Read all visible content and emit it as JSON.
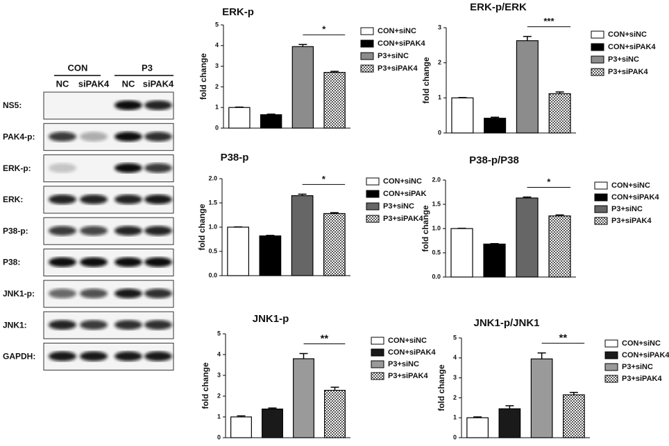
{
  "blot": {
    "groups": [
      "CON",
      "P3"
    ],
    "lanes": [
      "NC",
      "siPAK4",
      "NC",
      "siPAK4"
    ],
    "rows": [
      "NS5:",
      "PAK4-p:",
      "ERK-p:",
      "ERK:",
      "P38-p:",
      "P38:",
      "JNK1-p:",
      "JNK1:",
      "GAPDH:"
    ]
  },
  "chart_data": [
    {
      "type": "bar",
      "title": "ERK-p",
      "ylabel": "fold change",
      "ylim": [
        0,
        5
      ],
      "yticks": [
        0,
        1,
        2,
        3,
        4,
        5
      ],
      "significance": "*",
      "series": [
        {
          "name": "CON+siNC",
          "color": "#ffffff",
          "values": [
            1.0
          ],
          "errors": [
            0.02
          ]
        },
        {
          "name": "CON+siPAK4",
          "color": "#000000",
          "values": [
            0.65
          ],
          "errors": [
            0.03
          ]
        },
        {
          "name": "P3+siNC",
          "color": "#8c8c8c",
          "values": [
            3.95
          ],
          "errors": [
            0.1
          ]
        },
        {
          "name": "P3+siPAK4",
          "color": "#ffffff",
          "pattern": "checker",
          "values": [
            2.7
          ],
          "errors": [
            0.05
          ]
        }
      ]
    },
    {
      "type": "bar",
      "title": "ERK-p/ERK",
      "ylabel": "fold change",
      "ylim": [
        0,
        3
      ],
      "yticks": [
        0,
        1,
        2,
        3
      ],
      "significance": "***",
      "series": [
        {
          "name": "CON+siNC",
          "color": "#ffffff",
          "values": [
            1.0
          ],
          "errors": [
            0.01
          ]
        },
        {
          "name": "CON+siPAK4",
          "color": "#000000",
          "values": [
            0.42
          ],
          "errors": [
            0.03
          ]
        },
        {
          "name": "P3+siNC",
          "color": "#8c8c8c",
          "values": [
            2.63
          ],
          "errors": [
            0.12
          ]
        },
        {
          "name": "P3+siPAK4",
          "color": "#ffffff",
          "pattern": "checker",
          "values": [
            1.12
          ],
          "errors": [
            0.05
          ]
        }
      ]
    },
    {
      "type": "bar",
      "title": "P38-p",
      "ylabel": "fold change",
      "ylim": [
        0,
        2
      ],
      "yticks": [
        {
          "value": 0,
          "label": "0.0"
        },
        {
          "value": 0.5,
          "label": "0.5"
        },
        {
          "value": 1,
          "label": "1.0"
        },
        {
          "value": 1.5,
          "label": "1.5"
        },
        {
          "value": 2,
          "label": "2.0"
        }
      ],
      "significance": "*",
      "series": [
        {
          "name": "CON+siNC",
          "color": "#ffffff",
          "values": [
            1.0
          ],
          "errors": [
            0.005
          ]
        },
        {
          "name": "CON+siPAK",
          "color": "#000000",
          "values": [
            0.82
          ],
          "errors": [
            0.01
          ]
        },
        {
          "name": "P3+siNC",
          "color": "#666666",
          "values": [
            1.65
          ],
          "errors": [
            0.03
          ]
        },
        {
          "name": "P3+siPAK4",
          "color": "#ffffff",
          "pattern": "checker",
          "values": [
            1.28
          ],
          "errors": [
            0.02
          ]
        }
      ]
    },
    {
      "type": "bar",
      "title": "P38-p/P38",
      "ylabel": "fold change",
      "ylim": [
        0,
        2
      ],
      "yticks": [
        {
          "value": 0,
          "label": "0.0"
        },
        {
          "value": 0.5,
          "label": "0.5"
        },
        {
          "value": 1,
          "label": "1.0"
        },
        {
          "value": 1.5,
          "label": "1.5"
        },
        {
          "value": 2,
          "label": "2.0"
        }
      ],
      "significance": "*",
      "series": [
        {
          "name": "CON+siNC",
          "color": "#ffffff",
          "values": [
            1.0
          ],
          "errors": [
            0.005
          ]
        },
        {
          "name": "CON+siPAK4",
          "color": "#000000",
          "values": [
            0.68
          ],
          "errors": [
            0.01
          ]
        },
        {
          "name": "P3+siNC",
          "color": "#666666",
          "values": [
            1.63
          ],
          "errors": [
            0.02
          ]
        },
        {
          "name": "P3+siPAK4",
          "color": "#ffffff",
          "pattern": "checker",
          "values": [
            1.26
          ],
          "errors": [
            0.02
          ]
        }
      ]
    },
    {
      "type": "bar",
      "title": "JNK1-p",
      "ylabel": "fold change",
      "ylim": [
        0,
        5
      ],
      "yticks": [
        0,
        1,
        2,
        3,
        4,
        5
      ],
      "significance": "**",
      "series": [
        {
          "name": "CON+siNC",
          "color": "#ffffff",
          "values": [
            1.0
          ],
          "errors": [
            0.05
          ]
        },
        {
          "name": "CON+siPAK4",
          "color": "#1a1a1a",
          "values": [
            1.38
          ],
          "errors": [
            0.05
          ]
        },
        {
          "name": "P3+siNC",
          "color": "#9a9a9a",
          "values": [
            3.8
          ],
          "errors": [
            0.25
          ]
        },
        {
          "name": "P3+siPAK4",
          "color": "#ffffff",
          "pattern": "checker",
          "values": [
            2.28
          ],
          "errors": [
            0.15
          ]
        }
      ]
    },
    {
      "type": "bar",
      "title": "JNK1-p/JNK1",
      "ylabel": "fold change",
      "ylim": [
        0,
        5
      ],
      "yticks": [
        0,
        1,
        2,
        3,
        4,
        5
      ],
      "significance": "**",
      "series": [
        {
          "name": "CON+siNC",
          "color": "#ffffff",
          "values": [
            1.0
          ],
          "errors": [
            0.04
          ]
        },
        {
          "name": "CON+siPAK4",
          "color": "#1a1a1a",
          "values": [
            1.45
          ],
          "errors": [
            0.15
          ]
        },
        {
          "name": "P3+siNC",
          "color": "#9a9a9a",
          "values": [
            3.95
          ],
          "errors": [
            0.3
          ]
        },
        {
          "name": "P3+siPAK4",
          "color": "#ffffff",
          "pattern": "checker",
          "values": [
            2.15
          ],
          "errors": [
            0.12
          ]
        }
      ]
    }
  ]
}
